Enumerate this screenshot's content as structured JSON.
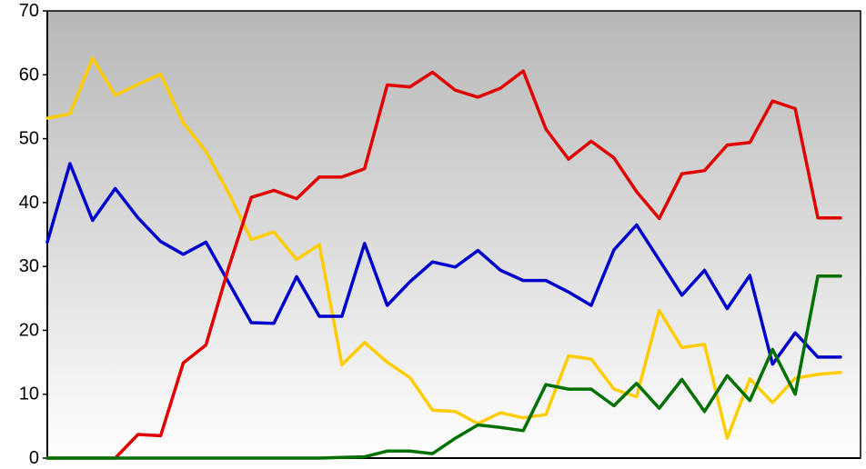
{
  "chart_data": {
    "type": "line",
    "title": "",
    "xlabel": "",
    "ylabel": "",
    "ylim": [
      0,
      70
    ],
    "yticks": [
      "0",
      "10",
      "20",
      "30",
      "40",
      "50",
      "60",
      "70"
    ],
    "grid": false,
    "legend": "none",
    "background": {
      "top": "#b7b7b7",
      "bottom": "#ffffff"
    },
    "x": [
      1,
      2,
      3,
      4,
      5,
      6,
      7,
      8,
      9,
      10,
      11,
      12,
      13,
      14,
      15,
      16,
      17,
      18,
      19,
      20,
      21,
      22,
      23,
      24,
      25,
      26,
      27,
      28,
      29,
      30,
      31,
      32,
      33,
      34,
      35,
      36
    ],
    "series": [
      {
        "color": "#ffcc00",
        "values": [
          53.2,
          53.9,
          62.6,
          56.8,
          58.5,
          60.1,
          52.5,
          48,
          41.5,
          34.2,
          35.4,
          31.1,
          33.4,
          14.6,
          18.1,
          15,
          12.6,
          7.5,
          7.3,
          5.4,
          7.1,
          6.3,
          6.8,
          16,
          15.5,
          10.8,
          9.6,
          23.1,
          17.3,
          17.8,
          3.1,
          12.4,
          8.7,
          12.5,
          13.1,
          13.4
        ]
      },
      {
        "color": "#0000cc",
        "values": [
          33.8,
          46.1,
          37.2,
          42.2,
          37.6,
          33.9,
          31.9,
          33.8,
          27.5,
          21.2,
          21.1,
          28.4,
          22.2,
          22.2,
          33.6,
          23.9,
          27.6,
          30.7,
          29.9,
          32.5,
          29.4,
          27.8,
          27.8,
          26,
          23.9,
          32.6,
          36.5,
          31,
          25.5,
          29.4,
          23.4,
          28.6,
          14.7,
          19.6,
          15.8,
          15.8
        ]
      },
      {
        "color": "#e00000",
        "values": [
          0,
          0,
          0,
          0,
          3.7,
          3.5,
          14.9,
          17.7,
          29.8,
          40.8,
          41.9,
          40.6,
          44,
          44,
          45.3,
          58.4,
          58.1,
          60.4,
          57.6,
          56.5,
          57.9,
          60.6,
          51.5,
          46.8,
          49.6,
          47,
          41.7,
          37.5,
          44.5,
          45,
          49,
          49.4,
          55.9,
          54.7,
          37.6,
          37.6
        ]
      },
      {
        "color": "#007000",
        "values": [
          0,
          0,
          0,
          0,
          0,
          0,
          0,
          0,
          0,
          0,
          0,
          0,
          0,
          0.1,
          0.2,
          1.1,
          1.1,
          0.7,
          3.1,
          5.2,
          4.8,
          4.3,
          11.5,
          10.8,
          10.8,
          8.2,
          11.7,
          7.8,
          12.3,
          7.3,
          12.9,
          9,
          17,
          10,
          28.5,
          28.5
        ]
      }
    ]
  }
}
